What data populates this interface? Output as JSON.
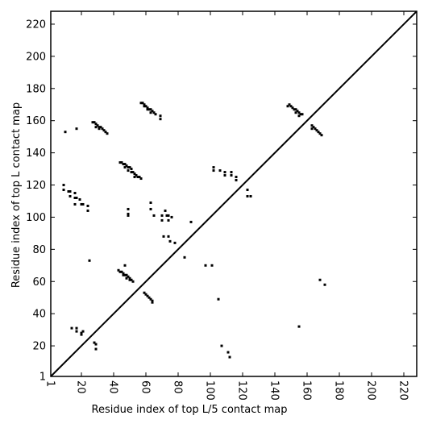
{
  "chart_data": {
    "type": "scatter",
    "xlabel": "Residue index of top L/5 contact map",
    "ylabel": "Residue index of top L contact map",
    "color": "#000000",
    "xlim": [
      1,
      228
    ],
    "ylim": [
      1,
      228
    ],
    "xticks": [
      1,
      20,
      40,
      60,
      80,
      100,
      120,
      140,
      160,
      180,
      200,
      220
    ],
    "yticks": [
      1,
      20,
      40,
      60,
      80,
      100,
      120,
      140,
      160,
      180,
      200,
      220
    ],
    "x": [
      27,
      28,
      29,
      30,
      31,
      32,
      33,
      34,
      35,
      36,
      29,
      31,
      57,
      58,
      59,
      60,
      61,
      62,
      63,
      64,
      65,
      66,
      59,
      61,
      63,
      69,
      69,
      44,
      45,
      46,
      47,
      48,
      49,
      50,
      51,
      51,
      52,
      53,
      54,
      55,
      56,
      57,
      53,
      47,
      49,
      10,
      17,
      9,
      9,
      12,
      13,
      16,
      13,
      16,
      17,
      19,
      20,
      21,
      16,
      24,
      24,
      49,
      49,
      49,
      63,
      63,
      65,
      70,
      70,
      72,
      73,
      74,
      74,
      76,
      71,
      74,
      75,
      78,
      88,
      84,
      25,
      47,
      43,
      44,
      45,
      46,
      47,
      48,
      49,
      50,
      51,
      52,
      46,
      48,
      50,
      59,
      60,
      61,
      62,
      63,
      64,
      64,
      14,
      17,
      17,
      20,
      21,
      20,
      28,
      29,
      29,
      97,
      101,
      105,
      107,
      111,
      112,
      102,
      102,
      106,
      109,
      109,
      113,
      113,
      116,
      116,
      123,
      123,
      125,
      148,
      149,
      150,
      151,
      152,
      153,
      154,
      155,
      156,
      157,
      153,
      155,
      163,
      163,
      164,
      165,
      166,
      167,
      168,
      169,
      168,
      171,
      155
    ],
    "values": [
      159,
      159,
      158,
      157,
      156,
      156,
      155,
      154,
      153,
      152,
      156,
      155,
      171,
      171,
      170,
      169,
      168,
      167,
      167,
      166,
      165,
      164,
      169,
      167,
      165,
      163,
      161,
      134,
      134,
      133,
      133,
      132,
      131,
      131,
      130,
      128,
      128,
      127,
      126,
      125,
      125,
      124,
      125,
      131,
      129,
      153,
      155,
      120,
      117,
      116,
      116,
      115,
      113,
      112,
      112,
      111,
      108,
      108,
      108,
      107,
      104,
      105,
      102,
      101,
      109,
      105,
      101,
      101,
      98,
      104,
      101,
      98,
      101,
      100,
      88,
      88,
      85,
      84,
      97,
      75,
      73,
      70,
      67,
      66,
      66,
      65,
      64,
      64,
      63,
      62,
      61,
      60,
      64,
      62,
      61,
      53,
      52,
      51,
      50,
      49,
      48,
      47,
      31,
      31,
      29,
      28,
      29,
      27,
      22,
      21,
      18,
      70,
      70,
      49,
      20,
      16,
      13,
      131,
      129,
      129,
      128,
      126,
      128,
      126,
      125,
      123,
      117,
      113,
      113,
      169,
      170,
      169,
      168,
      167,
      167,
      166,
      165,
      164,
      164,
      165,
      163,
      157,
      155,
      156,
      155,
      154,
      153,
      152,
      151,
      61,
      58,
      32
    ]
  }
}
